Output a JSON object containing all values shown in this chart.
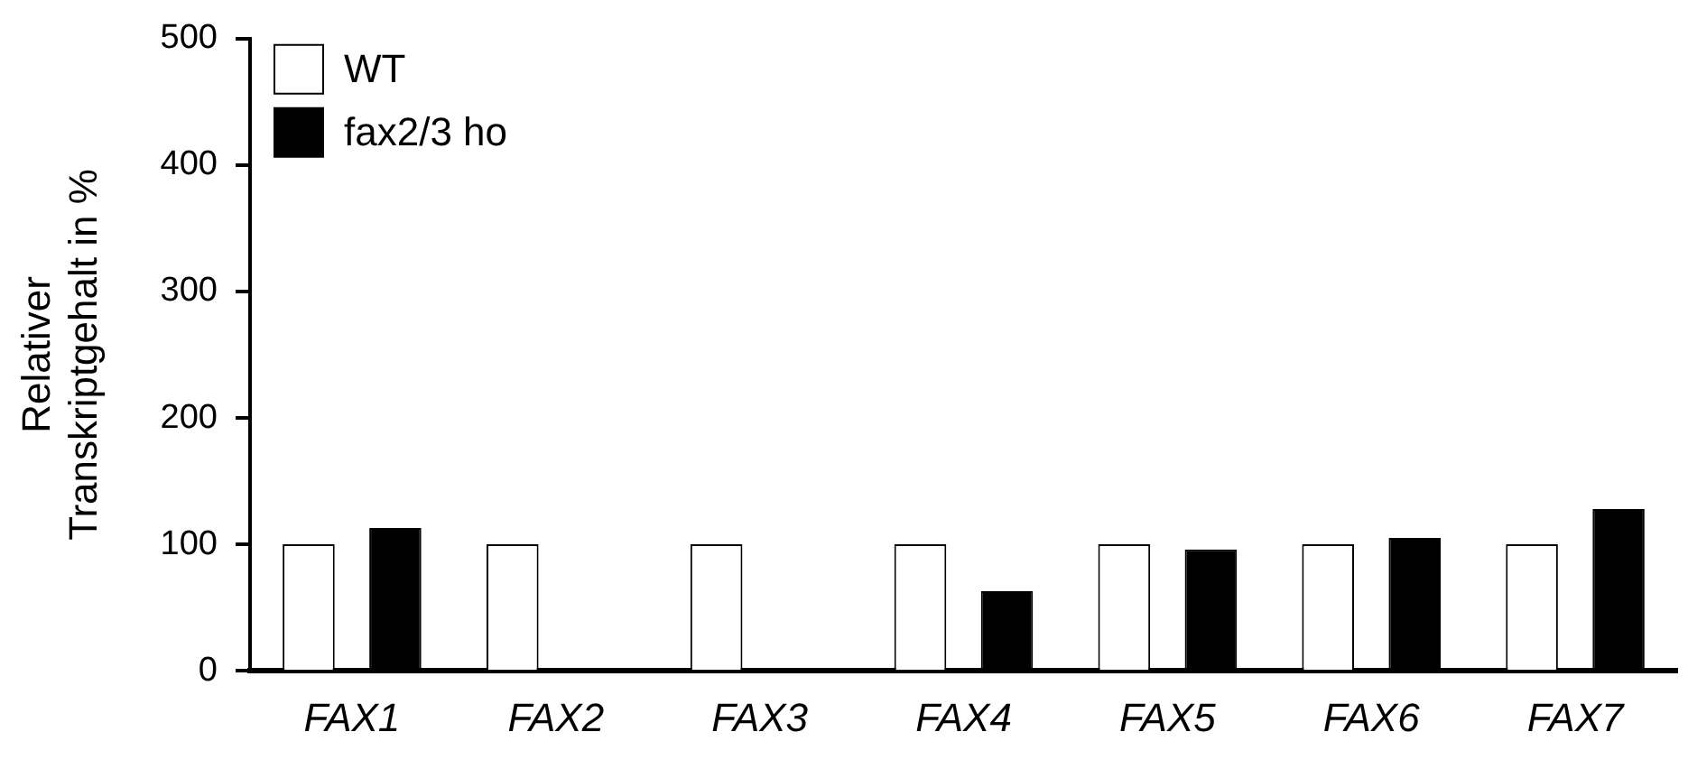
{
  "chart_data": {
    "type": "bar",
    "ylabel": "Relativer\nTranskriptgehalt in %",
    "categories": [
      "FAX1",
      "FAX2",
      "FAX3",
      "FAX4",
      "FAX5",
      "FAX6",
      "FAX7"
    ],
    "series": [
      {
        "name": "WT",
        "color": "#ffffff",
        "values": [
          100,
          100,
          100,
          100,
          100,
          100,
          100
        ]
      },
      {
        "name": "fax2/3 ho",
        "color": "#000000",
        "values": [
          113,
          null,
          null,
          63,
          96,
          105,
          128
        ]
      }
    ],
    "ylim": [
      0,
      500
    ],
    "yticks": [
      0,
      100,
      200,
      300,
      400,
      500
    ],
    "grid": false,
    "legend": "top left"
  }
}
